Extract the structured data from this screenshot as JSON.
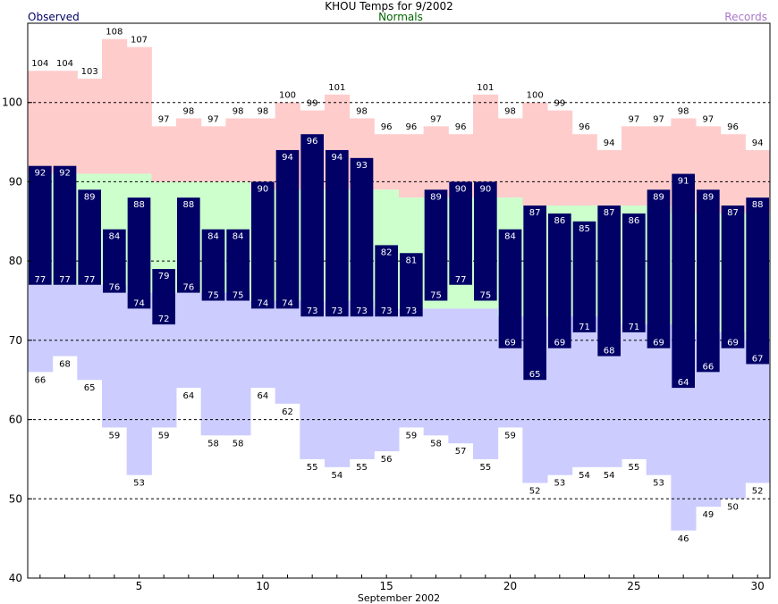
{
  "chart_data": {
    "type": "bar",
    "title": "KHOU Temps for 9/2002",
    "xlabel": "September 2002",
    "ylabel": "",
    "ylim": [
      40,
      110
    ],
    "xlim": [
      0.5,
      30.5
    ],
    "yticks": [
      40,
      50,
      60,
      70,
      80,
      90,
      100
    ],
    "xticks": [
      5,
      10,
      15,
      20,
      25,
      30
    ],
    "grid": "dashed horizontal at 50, 60, 70, 80, 90, 100",
    "legend": {
      "observed": "Observed",
      "normals": "Normals",
      "records": "Records"
    },
    "days": [
      1,
      2,
      3,
      4,
      5,
      6,
      7,
      8,
      9,
      10,
      11,
      12,
      13,
      14,
      15,
      16,
      17,
      18,
      19,
      20,
      21,
      22,
      23,
      24,
      25,
      26,
      27,
      28,
      29,
      30
    ],
    "series": [
      {
        "name": "Observed",
        "high": [
          92,
          92,
          89,
          84,
          88,
          79,
          88,
          84,
          84,
          90,
          94,
          96,
          94,
          93,
          82,
          81,
          89,
          90,
          90,
          84,
          87,
          86,
          85,
          87,
          86,
          89,
          91,
          89,
          87,
          88
        ],
        "low": [
          77,
          77,
          77,
          76,
          74,
          72,
          76,
          75,
          75,
          74,
          74,
          73,
          73,
          73,
          73,
          73,
          75,
          77,
          75,
          69,
          65,
          69,
          71,
          68,
          71,
          69,
          64,
          66,
          69,
          67
        ]
      },
      {
        "name": "Normals",
        "high": [
          91,
          91,
          91,
          91,
          91,
          90,
          90,
          90,
          90,
          89,
          89,
          89,
          89,
          89,
          89,
          88,
          88,
          88,
          88,
          88,
          87,
          87,
          87,
          87,
          87,
          87,
          86,
          86,
          86,
          86
        ],
        "low": [
          77,
          77,
          77,
          77,
          76,
          76,
          76,
          76,
          76,
          75,
          75,
          75,
          75,
          75,
          74,
          74,
          74,
          74,
          74,
          73,
          73,
          73,
          73,
          73,
          72,
          72,
          72,
          71,
          71,
          70
        ]
      },
      {
        "name": "Records",
        "high": [
          104,
          104,
          103,
          108,
          107,
          97,
          98,
          97,
          98,
          98,
          100,
          99,
          101,
          98,
          96,
          96,
          97,
          96,
          101,
          98,
          100,
          99,
          96,
          94,
          97,
          97,
          98,
          97,
          96,
          94
        ],
        "low": [
          66,
          68,
          65,
          59,
          53,
          59,
          64,
          58,
          58,
          64,
          62,
          55,
          54,
          55,
          56,
          59,
          58,
          57,
          55,
          59,
          52,
          53,
          54,
          54,
          55,
          53,
          46,
          49,
          50,
          52
        ]
      }
    ],
    "colors": {
      "observed_bar": "#000066",
      "normals_band": "#ccffcc",
      "record_high_band": "#ffcccc",
      "record_low_band": "#ccccff",
      "observed_label": "#000066",
      "normals_label": "#006600",
      "records_label": "#aa77cc"
    }
  }
}
